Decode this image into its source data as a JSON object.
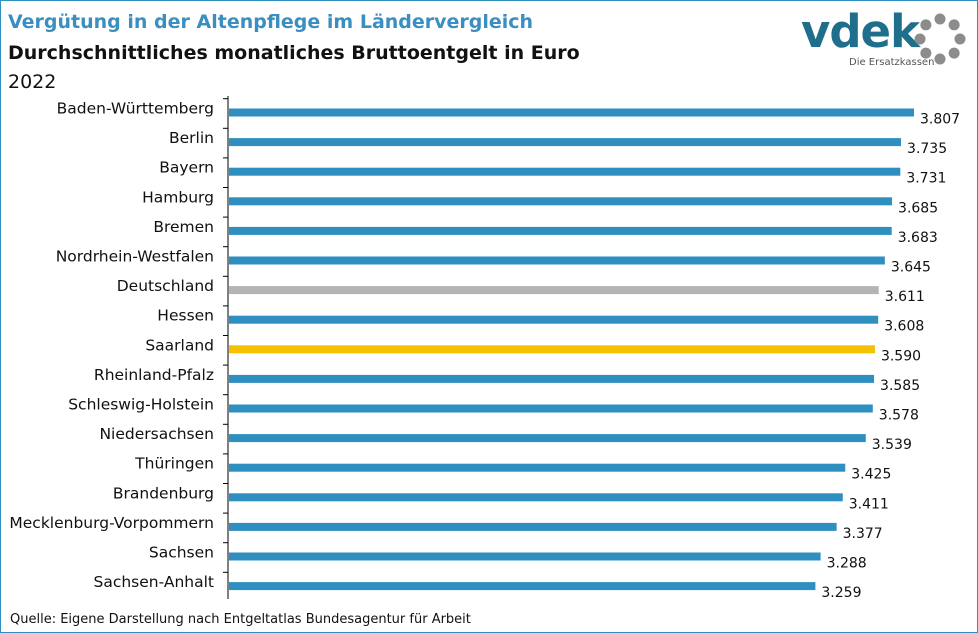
{
  "header": {
    "title": "Vergütung in der Altenpflege im Ländervergleich",
    "subtitle": "Durchschnittliches monatliches Bruttoentgelt in Euro",
    "year": "2022"
  },
  "logo": {
    "text": "vdek",
    "tagline": "Die Ersatzkassen"
  },
  "footer": {
    "source": "Quelle: Eigene Darstellung nach Entgeltatlas Bundesagentur für Arbeit"
  },
  "colors": {
    "bar_default": "#2f8fc0",
    "bar_germany": "#b4b4b4",
    "bar_highlight": "#f5c000",
    "title": "#3b8fc0",
    "logo": "#1f6e8c",
    "logo_ring": "#8c8c8c"
  },
  "chart_data": {
    "type": "bar",
    "orientation": "horizontal",
    "categories": [
      "Baden-Württemberg",
      "Berlin",
      "Bayern",
      "Hamburg",
      "Bremen",
      "Nordrhein-Westfalen",
      "Deutschland",
      "Hessen",
      "Saarland",
      "Rheinland-Pfalz",
      "Schleswig-Holstein",
      "Niedersachsen",
      "Thüringen",
      "Brandenburg",
      "Mecklenburg-Vorpommern",
      "Sachsen",
      "Sachsen-Anhalt"
    ],
    "values": [
      3807,
      3735,
      3731,
      3685,
      3683,
      3645,
      3611,
      3608,
      3590,
      3585,
      3578,
      3539,
      3425,
      3411,
      3377,
      3288,
      3259
    ],
    "value_labels": [
      "3.807",
      "3.735",
      "3.731",
      "3.685",
      "3.683",
      "3.645",
      "3.611",
      "3.608",
      "3.590",
      "3.585",
      "3.578",
      "3.539",
      "3.425",
      "3.411",
      "3.377",
      "3.288",
      "3.259"
    ],
    "bar_colors": {
      "Deutschland": "#b4b4b4",
      "Saarland": "#f5c000"
    },
    "xlim": [
      0,
      3807
    ],
    "grid": false,
    "legend": "none"
  }
}
